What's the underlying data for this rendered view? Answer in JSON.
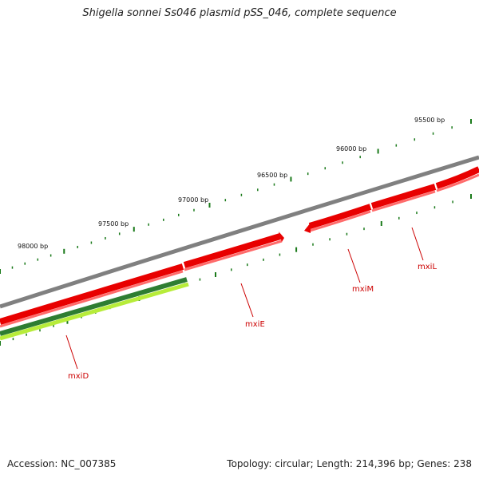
{
  "title": "Shigella sonnei Ss046 plasmid pSS_046, complete sequence",
  "footer": {
    "accession": "Accession: NC_007385",
    "summary": "Topology: circular; Length: 214,396 bp; Genes: 238"
  },
  "scale_labels": [
    "95500 bp",
    "96000 bp",
    "96500 bp",
    "97000 bp",
    "97500 bp",
    "98000 bp"
  ],
  "genes": [
    {
      "name": "mxiD",
      "color": "#ee0000"
    },
    {
      "name": "mxiE",
      "color": "#ee0000"
    },
    {
      "name": "mxiM",
      "color": "#ee0000"
    },
    {
      "name": "mxiL",
      "color": "#ee0000"
    }
  ],
  "colors": {
    "backbone": "#808080",
    "gene_fill": "#ee0000",
    "gene_shade": "#ff6666",
    "gc_dark": "#2e7d32",
    "gc_light": "#b7ec3a",
    "tick": "#1a7a1a"
  }
}
